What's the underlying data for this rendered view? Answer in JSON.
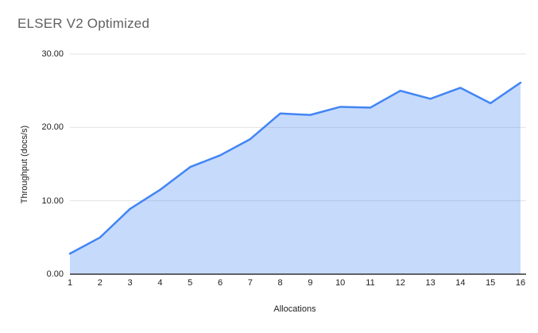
{
  "chart_data": {
    "type": "area",
    "title": "ELSER V2 Optimized",
    "xlabel": "Allocations",
    "ylabel": "Throughput (docs/s)",
    "x": [
      1,
      2,
      3,
      4,
      5,
      6,
      7,
      8,
      9,
      10,
      11,
      12,
      13,
      14,
      15,
      16
    ],
    "series": [
      {
        "name": "Throughput (docs/s)",
        "values": [
          2.8,
          5.0,
          8.9,
          11.5,
          14.6,
          16.2,
          18.4,
          21.9,
          21.7,
          22.8,
          22.7,
          25.0,
          23.9,
          25.4,
          23.3,
          26.1
        ]
      }
    ],
    "ylim": [
      0,
      30
    ],
    "yticks": [
      {
        "value": 0,
        "label": "0.00"
      },
      {
        "value": 10,
        "label": "10.00"
      },
      {
        "value": 20,
        "label": "20.00"
      },
      {
        "value": 30,
        "label": "30.00"
      }
    ],
    "grid": true,
    "legend": false,
    "colors": {
      "line": "#4285f4",
      "fill": "rgba(66,133,244,0.30)",
      "gridline": "#e3e3e3",
      "axis_line": "#333333",
      "title_text": "#616161",
      "tick_text": "#222222",
      "background": "#ffffff"
    }
  }
}
